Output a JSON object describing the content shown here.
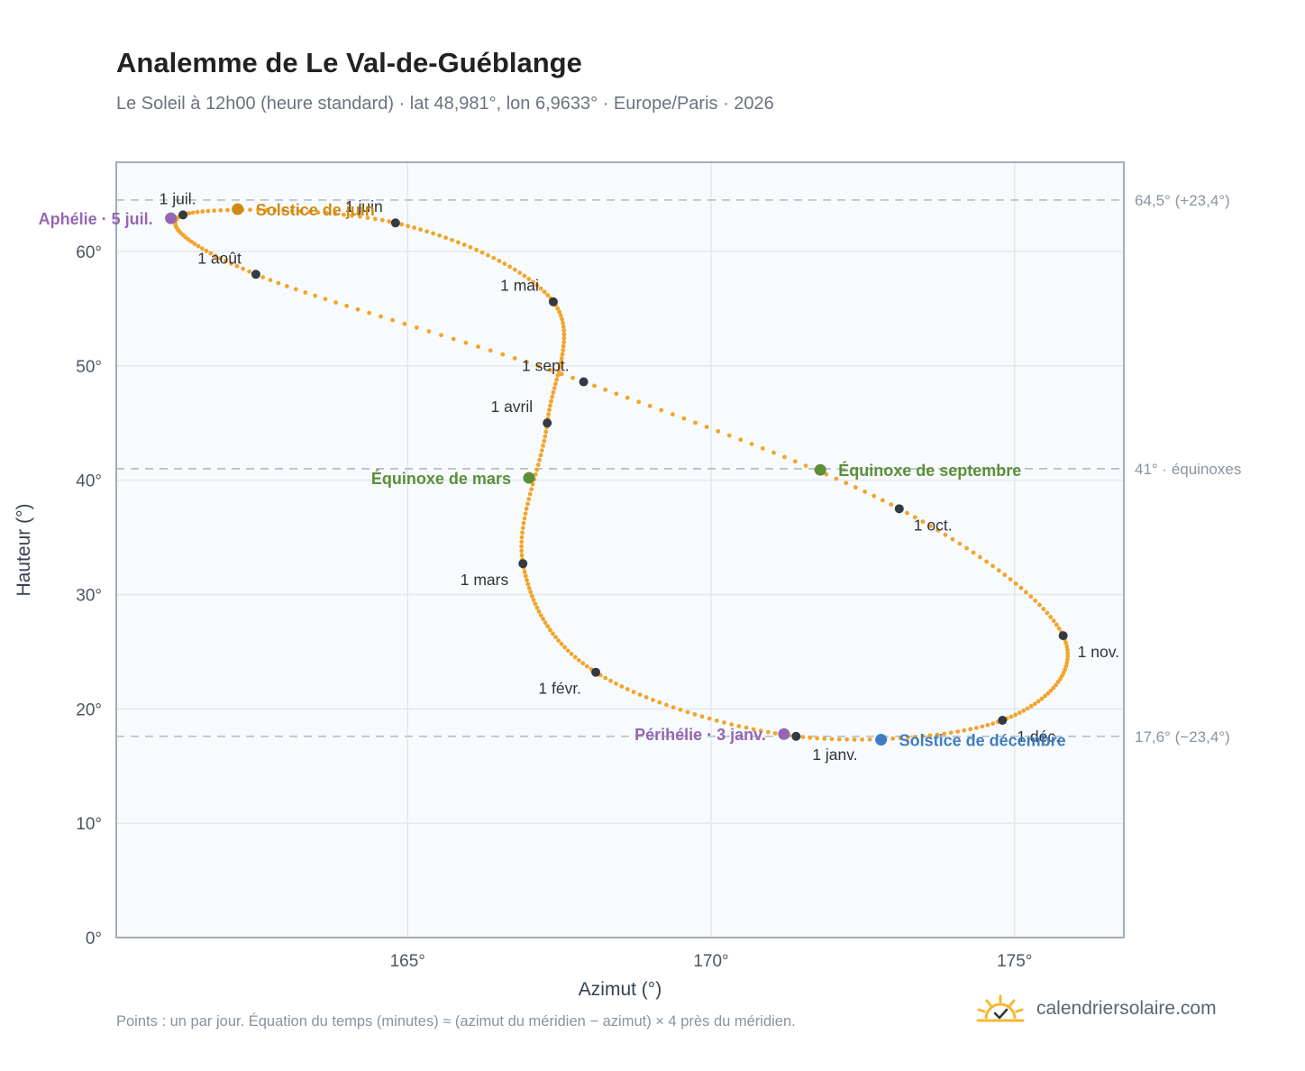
{
  "header": {
    "title": "Analemme de Le Val-de-Guéblange",
    "subtitle": "Le Soleil à 12h00 (heure standard) · lat 48,981°, lon 6,9633° · Europe/Paris · 2026"
  },
  "footer": {
    "note": "Points : un par jour. Équation du temps (minutes) ≈ (azimut du méridien − azimut) × 4 près du méridien.",
    "brand": "calendriersolaire.com"
  },
  "colors": {
    "curve": "#f2a52a",
    "month_marker": "#333a44",
    "aphelion_perihelion": "#9566b3",
    "equinox": "#5b8f3a",
    "solstice_june": "#cf8a14",
    "solstice_december": "#3f7dc0",
    "grid": "#e3e8ee",
    "plot_bg": "#f8fbfe",
    "frame": "#a3adba",
    "reference_line": "#b9c1ca"
  },
  "chart_data": {
    "type": "scatter",
    "xlabel": "Azimut (°)",
    "ylabel": "Hauteur (°)",
    "xlim": [
      160.2,
      176.8
    ],
    "ylim": [
      0,
      67.8
    ],
    "xticks": [
      {
        "value": 165,
        "label": "165°"
      },
      {
        "value": 170,
        "label": "170°"
      },
      {
        "value": 175,
        "label": "175°"
      }
    ],
    "yticks": [
      {
        "value": 0,
        "label": "0°"
      },
      {
        "value": 10,
        "label": "10°"
      },
      {
        "value": 20,
        "label": "20°"
      },
      {
        "value": 30,
        "label": "30°"
      },
      {
        "value": 40,
        "label": "40°"
      },
      {
        "value": 50,
        "label": "50°"
      },
      {
        "value": 60,
        "label": "60°"
      }
    ],
    "grid": true,
    "reference_lines": [
      {
        "y": 64.5,
        "label": "64,5° (+23,4°)"
      },
      {
        "y": 41.0,
        "label": "41° · équinoxes"
      },
      {
        "y": 17.6,
        "label": "17,6° (−23,4°)"
      }
    ],
    "series": [
      {
        "points": [
          [
            171.4,
            17.6
          ],
          [
            168.1,
            23.2
          ],
          [
            166.9,
            32.7
          ],
          [
            167.3,
            45.0
          ],
          [
            167.4,
            55.6
          ],
          [
            164.8,
            62.5
          ],
          [
            161.3,
            63.2
          ],
          [
            162.5,
            58.0
          ],
          [
            167.9,
            48.6
          ],
          [
            173.1,
            37.5
          ],
          [
            175.8,
            26.4
          ],
          [
            174.8,
            19.0
          ],
          [
            171.4,
            17.6
          ]
        ]
      }
    ],
    "month_markers": [
      {
        "label": "1 janv.",
        "x": 171.4,
        "y": 17.6
      },
      {
        "label": "1 févr.",
        "x": 168.1,
        "y": 23.2
      },
      {
        "label": "1 mars",
        "x": 166.9,
        "y": 32.7
      },
      {
        "label": "1 avril",
        "x": 167.3,
        "y": 45.0
      },
      {
        "label": "1 mai",
        "x": 167.4,
        "y": 55.6
      },
      {
        "label": "1 juin",
        "x": 164.8,
        "y": 62.5
      },
      {
        "label": "1 juil.",
        "x": 161.3,
        "y": 63.2
      },
      {
        "label": "1 août",
        "x": 162.5,
        "y": 58.0
      },
      {
        "label": "1 sept.",
        "x": 167.9,
        "y": 48.6
      },
      {
        "label": "1 oct.",
        "x": 173.1,
        "y": 37.5
      },
      {
        "label": "1 nov.",
        "x": 175.8,
        "y": 26.4
      },
      {
        "label": "1 déc.",
        "x": 174.8,
        "y": 19.0
      }
    ],
    "events": [
      {
        "label": "Aphélie · 5 juil.",
        "x": 161.1,
        "y": 62.9,
        "kind": "aphelion_perihelion"
      },
      {
        "label": "Solstice de juin",
        "x": 162.2,
        "y": 63.7,
        "kind": "solstice_june"
      },
      {
        "label": "Équinoxe de mars",
        "x": 167.0,
        "y": 40.2,
        "kind": "equinox"
      },
      {
        "label": "Équinoxe de septembre",
        "x": 171.8,
        "y": 40.9,
        "kind": "equinox"
      },
      {
        "label": "Périhélie · 3 janv.",
        "x": 171.2,
        "y": 17.8,
        "kind": "aphelion_perihelion"
      },
      {
        "label": "Solstice de décembre",
        "x": 172.8,
        "y": 17.3,
        "kind": "solstice_december"
      }
    ]
  }
}
